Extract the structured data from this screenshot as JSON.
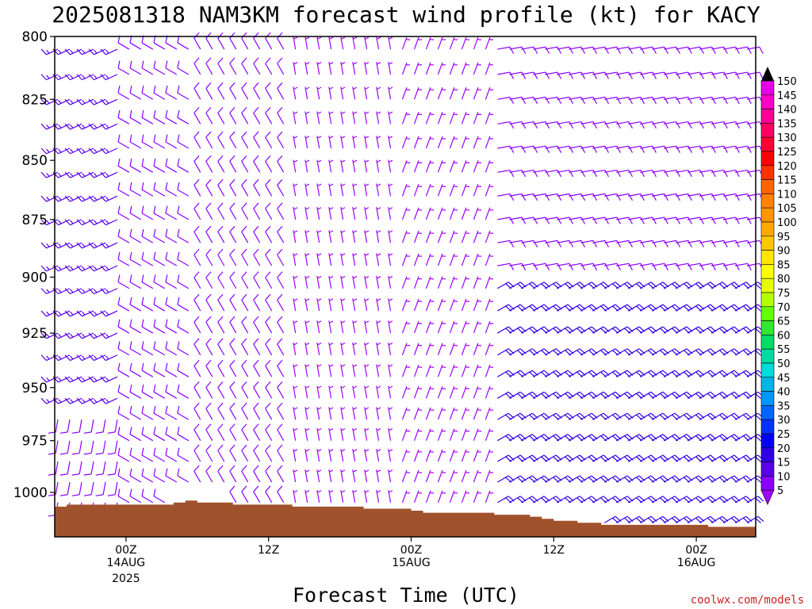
{
  "chart_data": {
    "type": "wind-barb time-height profile",
    "title": "2025081318 NAM3KM forecast wind profile (kt) for KACY",
    "xlabel": "Forecast Time (UTC)",
    "ylabel": "",
    "credit": "coolwx.com/models",
    "y_axis": {
      "ticks": [
        "800",
        "825",
        "850",
        "875",
        "900",
        "925",
        "950",
        "975",
        "1000"
      ],
      "range_hpa": [
        800,
        1022
      ],
      "inverted": true
    },
    "x_axis": {
      "ticks": [
        {
          "label": "00Z",
          "date": "14AUG",
          "year": "2025",
          "fhr": 6
        },
        {
          "label": "12Z",
          "date": "",
          "year": "",
          "fhr": 18
        },
        {
          "label": "00Z",
          "date": "15AUG",
          "year": "",
          "fhr": 30
        },
        {
          "label": "12Z",
          "date": "",
          "year": "",
          "fhr": 42
        },
        {
          "label": "00Z",
          "date": "16AUG",
          "year": "",
          "fhr": 54
        }
      ],
      "range_fhr": [
        0,
        59
      ]
    },
    "colorbar": {
      "unit": "kt",
      "labels": [
        "150",
        "145",
        "140",
        "135",
        "130",
        "125",
        "120",
        "115",
        "110",
        "105",
        "100",
        "95",
        "90",
        "85",
        "80",
        "75",
        "70",
        "65",
        "60",
        "55",
        "50",
        "45",
        "40",
        "35",
        "30",
        "25",
        "20",
        "15",
        "10",
        "5"
      ],
      "colors": [
        "#e600e6",
        "#ff00c8",
        "#ff0096",
        "#ff0064",
        "#ff0032",
        "#ff0000",
        "#ff3200",
        "#ff6400",
        "#ff8200",
        "#ff9600",
        "#ffaa00",
        "#ffc800",
        "#ffe600",
        "#ffff00",
        "#e6ff00",
        "#b4ff00",
        "#64ff00",
        "#32e632",
        "#00dc64",
        "#00dca0",
        "#00dcdc",
        "#00b4e6",
        "#0096ff",
        "#0064ff",
        "#0032ff",
        "#0000ff",
        "#3200e6",
        "#5a00e6",
        "#8c00ff",
        "#a000ff"
      ]
    },
    "terrain": {
      "color": "#a0522d",
      "surface_pressure_hpa": [
        1007,
        1006,
        1006,
        1006,
        1006,
        1006,
        1006,
        1006,
        1006,
        1006,
        1005,
        1004,
        1005,
        1005,
        1005,
        1006,
        1006,
        1006,
        1006,
        1006,
        1007,
        1007,
        1007,
        1007,
        1007,
        1007,
        1008,
        1008,
        1008,
        1008,
        1009,
        1010,
        1010,
        1010,
        1010,
        1010,
        1010,
        1011,
        1011,
        1011,
        1012,
        1013,
        1014,
        1014,
        1015,
        1015,
        1016,
        1016,
        1016,
        1016,
        1016,
        1016,
        1016,
        1016,
        1016,
        1017,
        1017,
        1017,
        1017
      ],
      "fhr": [
        0,
        1,
        2,
        3,
        4,
        5,
        6,
        7,
        8,
        9,
        10,
        11,
        12,
        13,
        14,
        15,
        16,
        17,
        18,
        19,
        20,
        21,
        22,
        23,
        24,
        25,
        26,
        27,
        28,
        29,
        30,
        31,
        32,
        33,
        34,
        35,
        36,
        37,
        38,
        39,
        40,
        41,
        42,
        43,
        44,
        45,
        46,
        47,
        48,
        49,
        50,
        51,
        52,
        53,
        54,
        55,
        56,
        57,
        58
      ]
    },
    "barb_pressure_levels_hpa": [
      805,
      815,
      825,
      835,
      845,
      855,
      865,
      875,
      885,
      895,
      905,
      915,
      925,
      935,
      945,
      955,
      965,
      975,
      985,
      995,
      1005,
      1015
    ],
    "wind_regimes": [
      {
        "fhr_from": 0,
        "fhr_to": 6,
        "pressure_from": 800,
        "pressure_to": 960,
        "direction_deg": 245,
        "speed_kt": 15
      },
      {
        "fhr_from": 0,
        "fhr_to": 6,
        "pressure_from": 960,
        "pressure_to": 1022,
        "direction_deg": 190,
        "speed_kt": 10
      },
      {
        "fhr_from": 6,
        "fhr_to": 12,
        "pressure_from": 800,
        "pressure_to": 1022,
        "direction_deg": 300,
        "speed_kt": 10
      },
      {
        "fhr_from": 12,
        "fhr_to": 20,
        "pressure_from": 800,
        "pressure_to": 1022,
        "direction_deg": 330,
        "speed_kt": 10
      },
      {
        "fhr_from": 20,
        "fhr_to": 29,
        "pressure_from": 800,
        "pressure_to": 1022,
        "direction_deg": 350,
        "speed_kt": 8
      },
      {
        "fhr_from": 29,
        "fhr_to": 37,
        "pressure_from": 800,
        "pressure_to": 1022,
        "direction_deg": 20,
        "speed_kt": 8
      },
      {
        "fhr_from": 37,
        "fhr_to": 59,
        "pressure_from": 800,
        "pressure_to": 900,
        "direction_deg": 80,
        "speed_kt": 10
      },
      {
        "fhr_from": 37,
        "fhr_to": 59,
        "pressure_from": 900,
        "pressure_to": 1022,
        "direction_deg": 60,
        "speed_kt": 20
      }
    ]
  }
}
